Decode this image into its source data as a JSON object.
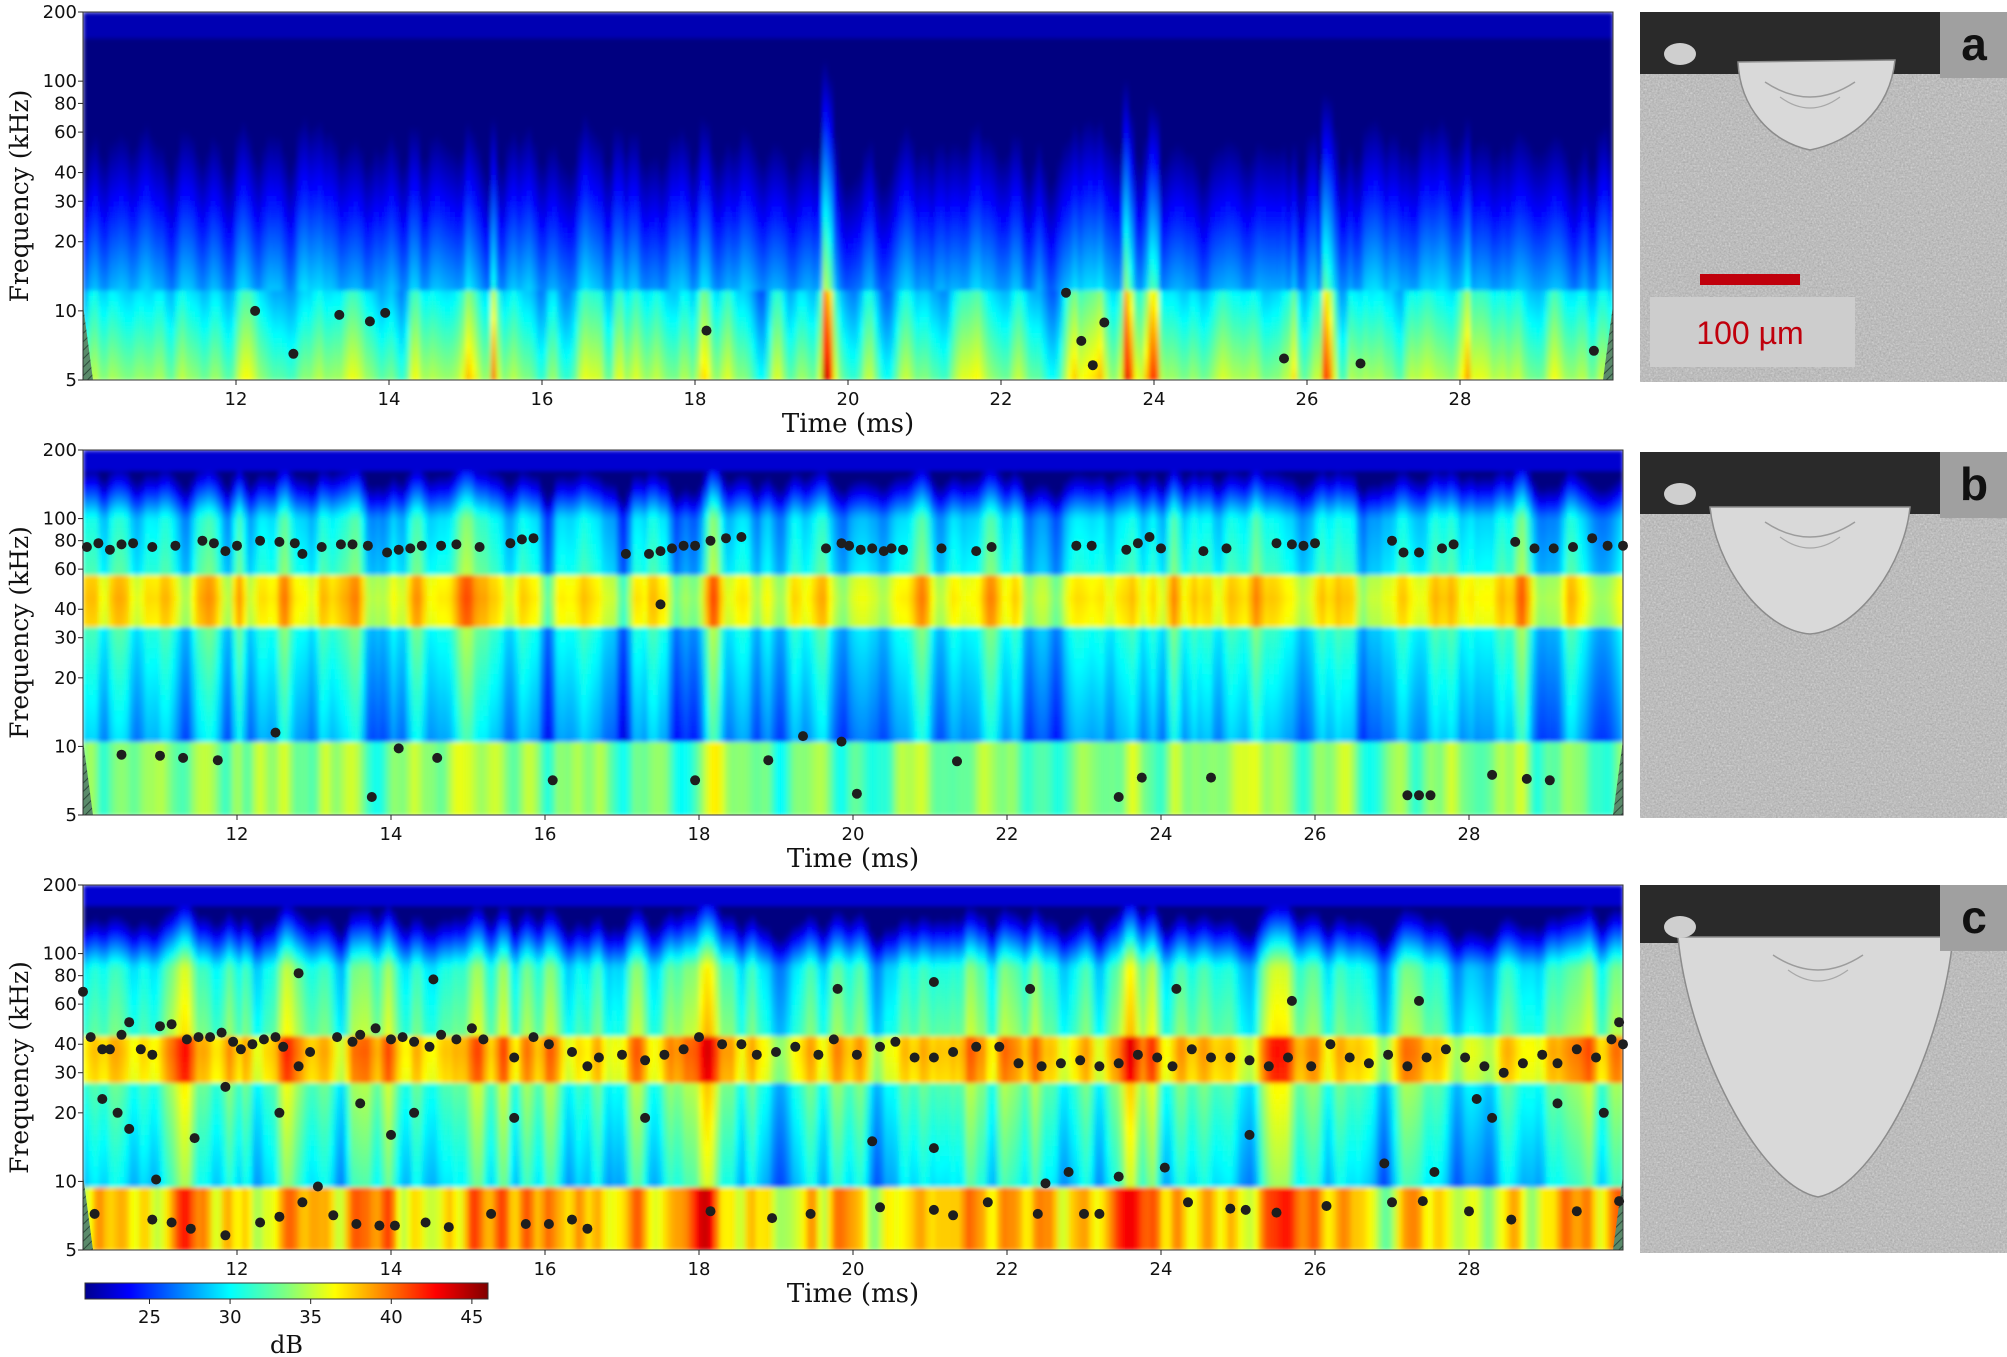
{
  "chart_data": [
    {
      "type": "heatmap",
      "panel": "a",
      "xlabel": "Time (ms)",
      "ylabel": "Frequency (kHz)",
      "xlim": [
        10,
        30
      ],
      "ylim": [
        5,
        200
      ],
      "yscale": "log",
      "xticks": [
        12,
        14,
        16,
        18,
        20,
        22,
        24,
        26,
        28
      ],
      "yticks": [
        5,
        10,
        20,
        30,
        40,
        60,
        80,
        100,
        200
      ],
      "intensity": "low",
      "peaks": [
        [
          12.25,
          10
        ],
        [
          12.75,
          6.5
        ],
        [
          13.35,
          9.6
        ],
        [
          13.75,
          9.0
        ],
        [
          13.95,
          9.8
        ],
        [
          18.15,
          8.2
        ],
        [
          22.85,
          12.0
        ],
        [
          23.05,
          7.4
        ],
        [
          23.2,
          5.8
        ],
        [
          23.35,
          8.9
        ],
        [
          25.7,
          6.2
        ],
        [
          26.7,
          5.9
        ],
        [
          29.75,
          6.7
        ]
      ]
    },
    {
      "type": "heatmap",
      "panel": "b",
      "xlabel": "Time (ms)",
      "ylabel": "Frequency (kHz)",
      "xlim": [
        10,
        30
      ],
      "ylim": [
        5,
        200
      ],
      "yscale": "log",
      "xticks": [
        12,
        14,
        16,
        18,
        20,
        22,
        24,
        26,
        28
      ],
      "yticks": [
        5,
        10,
        20,
        30,
        40,
        60,
        80,
        100,
        200
      ],
      "intensity": "medium",
      "peaks": [
        [
          10.05,
          75
        ],
        [
          10.2,
          78
        ],
        [
          10.35,
          73
        ],
        [
          10.5,
          77
        ],
        [
          10.65,
          78
        ],
        [
          10.9,
          75
        ],
        [
          11.2,
          76
        ],
        [
          11.55,
          80
        ],
        [
          11.7,
          78
        ],
        [
          11.85,
          72
        ],
        [
          12.0,
          76
        ],
        [
          12.3,
          80
        ],
        [
          12.55,
          79
        ],
        [
          12.75,
          78
        ],
        [
          12.85,
          70
        ],
        [
          13.1,
          75
        ],
        [
          13.35,
          77
        ],
        [
          13.5,
          77
        ],
        [
          13.7,
          76
        ],
        [
          13.95,
          71
        ],
        [
          14.1,
          73
        ],
        [
          14.25,
          74
        ],
        [
          14.4,
          76
        ],
        [
          14.65,
          76
        ],
        [
          14.85,
          77
        ],
        [
          15.15,
          75
        ],
        [
          15.55,
          78
        ],
        [
          15.7,
          81
        ],
        [
          15.85,
          82
        ],
        [
          17.05,
          70
        ],
        [
          17.35,
          70
        ],
        [
          17.5,
          72
        ],
        [
          17.65,
          74
        ],
        [
          17.8,
          76
        ],
        [
          17.95,
          76
        ],
        [
          18.15,
          80
        ],
        [
          18.35,
          82
        ],
        [
          18.55,
          83
        ],
        [
          19.65,
          74
        ],
        [
          19.85,
          78
        ],
        [
          19.95,
          76
        ],
        [
          20.1,
          73
        ],
        [
          20.25,
          74
        ],
        [
          20.4,
          72
        ],
        [
          20.5,
          74
        ],
        [
          20.65,
          73
        ],
        [
          21.15,
          74
        ],
        [
          21.6,
          72
        ],
        [
          21.8,
          75
        ],
        [
          22.9,
          76
        ],
        [
          23.1,
          76
        ],
        [
          23.55,
          73
        ],
        [
          23.7,
          78
        ],
        [
          23.85,
          83
        ],
        [
          24.0,
          74
        ],
        [
          24.55,
          72
        ],
        [
          24.85,
          74
        ],
        [
          25.5,
          78
        ],
        [
          25.7,
          77
        ],
        [
          25.85,
          76
        ],
        [
          26.0,
          78
        ],
        [
          27.0,
          80
        ],
        [
          27.15,
          71
        ],
        [
          27.35,
          71
        ],
        [
          27.65,
          74
        ],
        [
          27.8,
          77
        ],
        [
          28.6,
          79
        ],
        [
          28.85,
          74
        ],
        [
          29.1,
          74
        ],
        [
          29.35,
          75
        ],
        [
          29.6,
          82
        ],
        [
          29.8,
          76
        ],
        [
          30.0,
          76
        ],
        [
          17.5,
          42
        ],
        [
          10.5,
          9.2
        ],
        [
          11.0,
          9.1
        ],
        [
          11.3,
          8.9
        ],
        [
          11.75,
          8.7
        ],
        [
          12.5,
          11.5
        ],
        [
          13.75,
          6.0
        ],
        [
          14.1,
          9.8
        ],
        [
          14.6,
          8.9
        ],
        [
          16.1,
          7.1
        ],
        [
          17.95,
          7.1
        ],
        [
          18.9,
          8.7
        ],
        [
          19.35,
          11.1
        ],
        [
          19.85,
          10.5
        ],
        [
          20.05,
          6.2
        ],
        [
          21.35,
          8.6
        ],
        [
          23.45,
          6.0
        ],
        [
          23.75,
          7.3
        ],
        [
          24.65,
          7.3
        ],
        [
          27.2,
          6.1
        ],
        [
          27.35,
          6.1
        ],
        [
          27.5,
          6.1
        ],
        [
          28.3,
          7.5
        ],
        [
          28.75,
          7.2
        ],
        [
          29.05,
          7.1
        ]
      ]
    },
    {
      "type": "heatmap",
      "panel": "c",
      "xlabel": "Time (ms)",
      "ylabel": "Frequency (kHz)",
      "xlim": [
        10,
        30
      ],
      "ylim": [
        5,
        200
      ],
      "yscale": "log",
      "xticks": [
        12,
        14,
        16,
        18,
        20,
        22,
        24,
        26,
        28
      ],
      "yticks": [
        5,
        10,
        20,
        30,
        40,
        60,
        80,
        100,
        200
      ],
      "intensity": "high",
      "peaks": [
        [
          10.0,
          68
        ],
        [
          10.1,
          43
        ],
        [
          10.25,
          38
        ],
        [
          10.35,
          38
        ],
        [
          10.5,
          44
        ],
        [
          10.6,
          50
        ],
        [
          10.75,
          38
        ],
        [
          10.9,
          36
        ],
        [
          11.0,
          48
        ],
        [
          11.15,
          49
        ],
        [
          11.35,
          42
        ],
        [
          11.5,
          43
        ],
        [
          11.65,
          43
        ],
        [
          11.8,
          45
        ],
        [
          11.95,
          41
        ],
        [
          12.05,
          38
        ],
        [
          12.2,
          40
        ],
        [
          12.35,
          42
        ],
        [
          12.5,
          43
        ],
        [
          12.6,
          39
        ],
        [
          12.8,
          32
        ],
        [
          12.95,
          37
        ],
        [
          13.3,
          43
        ],
        [
          13.5,
          41
        ],
        [
          13.6,
          44
        ],
        [
          13.8,
          47
        ],
        [
          14.0,
          42
        ],
        [
          14.15,
          43
        ],
        [
          14.3,
          41
        ],
        [
          14.5,
          39
        ],
        [
          14.65,
          44
        ],
        [
          14.85,
          42
        ],
        [
          15.05,
          47
        ],
        [
          15.2,
          42
        ],
        [
          12.8,
          82
        ],
        [
          14.55,
          77
        ],
        [
          15.6,
          35
        ],
        [
          15.85,
          43
        ],
        [
          16.05,
          40
        ],
        [
          16.35,
          37
        ],
        [
          16.55,
          32
        ],
        [
          16.7,
          35
        ],
        [
          17.0,
          36
        ],
        [
          17.3,
          34
        ],
        [
          17.55,
          36
        ],
        [
          17.8,
          38
        ],
        [
          18.0,
          43
        ],
        [
          18.3,
          40
        ],
        [
          18.55,
          40
        ],
        [
          18.75,
          36
        ],
        [
          19.0,
          37
        ],
        [
          19.25,
          39
        ],
        [
          19.55,
          36
        ],
        [
          19.75,
          42
        ],
        [
          20.05,
          36
        ],
        [
          20.35,
          39
        ],
        [
          20.55,
          41
        ],
        [
          20.8,
          35
        ],
        [
          21.05,
          35
        ],
        [
          21.3,
          37
        ],
        [
          21.6,
          39
        ],
        [
          21.9,
          39
        ],
        [
          22.15,
          33
        ],
        [
          22.45,
          32
        ],
        [
          22.7,
          33
        ],
        [
          22.95,
          34
        ],
        [
          23.2,
          32
        ],
        [
          23.45,
          33
        ],
        [
          23.7,
          36
        ],
        [
          23.95,
          35
        ],
        [
          24.15,
          32
        ],
        [
          24.4,
          38
        ],
        [
          24.65,
          35
        ],
        [
          24.9,
          35
        ],
        [
          25.15,
          34
        ],
        [
          25.4,
          32
        ],
        [
          25.65,
          35
        ],
        [
          25.95,
          32
        ],
        [
          26.2,
          40
        ],
        [
          26.45,
          35
        ],
        [
          26.7,
          33
        ],
        [
          26.95,
          36
        ],
        [
          27.2,
          32
        ],
        [
          27.45,
          35
        ],
        [
          27.7,
          38
        ],
        [
          27.95,
          35
        ],
        [
          28.2,
          32
        ],
        [
          28.45,
          30
        ],
        [
          28.7,
          33
        ],
        [
          28.95,
          36
        ],
        [
          29.15,
          33
        ],
        [
          29.4,
          38
        ],
        [
          29.65,
          35
        ],
        [
          29.85,
          42
        ],
        [
          30.0,
          40
        ],
        [
          19.8,
          70
        ],
        [
          21.05,
          75
        ],
        [
          22.3,
          70
        ],
        [
          24.2,
          70
        ],
        [
          25.7,
          62
        ],
        [
          27.35,
          62
        ],
        [
          29.95,
          50
        ],
        [
          10.25,
          23
        ],
        [
          10.45,
          20
        ],
        [
          10.6,
          17
        ],
        [
          10.95,
          10.2
        ],
        [
          11.45,
          15.5
        ],
        [
          11.85,
          26
        ],
        [
          12.55,
          20
        ],
        [
          13.05,
          9.5
        ],
        [
          13.6,
          22
        ],
        [
          14.0,
          16
        ],
        [
          14.3,
          20
        ],
        [
          15.6,
          19
        ],
        [
          17.3,
          19
        ],
        [
          20.25,
          15
        ],
        [
          21.05,
          14
        ],
        [
          22.5,
          9.8
        ],
        [
          22.8,
          11
        ],
        [
          23.45,
          10.5
        ],
        [
          24.05,
          11.5
        ],
        [
          25.15,
          16
        ],
        [
          26.9,
          12
        ],
        [
          27.55,
          11
        ],
        [
          28.1,
          23
        ],
        [
          28.3,
          19
        ],
        [
          29.15,
          22
        ],
        [
          29.75,
          20
        ],
        [
          10.15,
          7.2
        ],
        [
          10.9,
          6.8
        ],
        [
          11.4,
          6.2
        ],
        [
          11.85,
          5.8
        ],
        [
          12.3,
          6.6
        ],
        [
          12.85,
          8.1
        ],
        [
          13.25,
          7.1
        ],
        [
          13.85,
          6.4
        ],
        [
          14.05,
          6.4
        ],
        [
          14.45,
          6.6
        ],
        [
          14.75,
          6.3
        ],
        [
          15.3,
          7.2
        ],
        [
          15.75,
          6.5
        ],
        [
          16.05,
          6.5
        ],
        [
          16.35,
          6.8
        ],
        [
          16.55,
          6.2
        ],
        [
          18.15,
          7.4
        ],
        [
          18.95,
          6.9
        ],
        [
          19.45,
          7.2
        ],
        [
          20.35,
          7.7
        ],
        [
          21.05,
          7.5
        ],
        [
          21.3,
          7.1
        ],
        [
          21.75,
          8.1
        ],
        [
          22.4,
          7.2
        ],
        [
          23.0,
          7.2
        ],
        [
          23.2,
          7.2
        ],
        [
          24.35,
          8.1
        ],
        [
          24.9,
          7.6
        ],
        [
          25.1,
          7.5
        ],
        [
          25.5,
          7.3
        ],
        [
          26.15,
          7.8
        ],
        [
          27.0,
          8.1
        ],
        [
          27.4,
          8.2
        ],
        [
          28.0,
          7.4
        ],
        [
          28.55,
          6.8
        ],
        [
          29.4,
          7.4
        ],
        [
          29.95,
          8.2
        ],
        [
          12.55,
          7.0
        ],
        [
          13.55,
          6.5
        ],
        [
          11.15,
          6.6
        ]
      ]
    }
  ],
  "colorbar": {
    "label": "dB",
    "min": 21,
    "max": 46,
    "ticks": [
      25,
      30,
      35,
      40,
      45
    ],
    "colormap": "jet"
  },
  "micrographs": [
    {
      "tag": "a",
      "shape": "shallow",
      "scale_bar": "100 µm",
      "scale_bar_color": "#c0000c"
    },
    {
      "tag": "b",
      "shape": "medium",
      "scale_bar": "",
      "scale_bar_color": ""
    },
    {
      "tag": "c",
      "shape": "deep",
      "scale_bar": "",
      "scale_bar_color": ""
    }
  ],
  "colors": {
    "peak_marker": "#1e1e1e",
    "background": "#ffffff"
  }
}
